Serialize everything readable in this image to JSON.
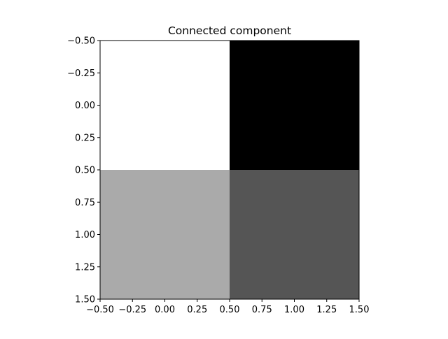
{
  "chart_data": {
    "type": "heatmap",
    "title": "Connected component",
    "xlabel": "",
    "ylabel": "",
    "xlim": [
      -0.5,
      1.5
    ],
    "ylim": [
      1.5,
      -0.5
    ],
    "y_inverted": true,
    "colormap": "gray",
    "grid": false,
    "legend": "none",
    "x_ticks": [
      -0.5,
      -0.25,
      0.0,
      0.25,
      0.5,
      0.75,
      1.0,
      1.25,
      1.5
    ],
    "x_tick_labels": [
      "−0.50",
      "−0.25",
      "0.00",
      "0.25",
      "0.50",
      "0.75",
      "1.00",
      "1.25",
      "1.50"
    ],
    "y_ticks": [
      -0.5,
      -0.25,
      0.0,
      0.25,
      0.5,
      0.75,
      1.0,
      1.25,
      1.5
    ],
    "y_tick_labels": [
      "−0.50",
      "−0.25",
      "0.00",
      "0.25",
      "0.50",
      "0.75",
      "1.00",
      "1.25",
      "1.50"
    ],
    "cells": [
      {
        "row": 0,
        "col": 0,
        "color": "#ffffff"
      },
      {
        "row": 0,
        "col": 1,
        "color": "#000000"
      },
      {
        "row": 1,
        "col": 0,
        "color": "#aaaaaa"
      },
      {
        "row": 1,
        "col": 1,
        "color": "#555555"
      }
    ]
  }
}
